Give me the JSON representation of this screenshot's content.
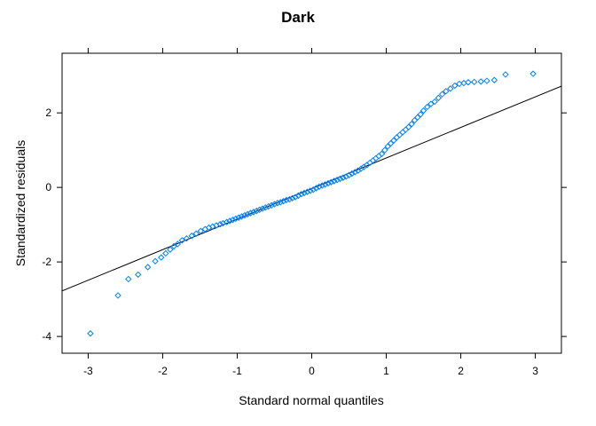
{
  "chart_data": {
    "type": "scatter",
    "subtype": "qq-plot",
    "title": "Dark",
    "xlabel": "Standard normal quantiles",
    "ylabel": "Standardized residuals",
    "xlim": [
      -3.35,
      3.35
    ],
    "ylim": [
      -4.45,
      3.6
    ],
    "xticks": [
      -3,
      -2,
      -1,
      0,
      1,
      2,
      3
    ],
    "yticks": [
      -4,
      -2,
      0,
      2
    ],
    "grid": false,
    "legend": "none",
    "reference_line": {
      "intercept": -0.03,
      "slope": 0.82
    },
    "point_color": "#0080ff",
    "line_color": "#000000",
    "series": [
      {
        "x": [
          -2.97,
          -2.6,
          -2.46,
          -2.33,
          -2.2,
          -2.1,
          -2.02,
          -1.96,
          -1.9,
          -1.85,
          -1.8,
          -1.74,
          -1.68,
          -1.61,
          -1.55,
          -1.49,
          -1.43,
          -1.38,
          -1.33,
          -1.28,
          -1.23,
          -1.19,
          -1.14,
          -1.1,
          -1.06,
          -1.02,
          -0.98,
          -0.94,
          -0.9,
          -0.86,
          -0.82,
          -0.78,
          -0.74,
          -0.7,
          -0.66,
          -0.62,
          -0.58,
          -0.54,
          -0.5,
          -0.46,
          -0.42,
          -0.38,
          -0.34,
          -0.3,
          -0.26,
          -0.22,
          -0.18,
          -0.14,
          -0.1,
          -0.06,
          -0.02,
          0.02,
          0.06,
          0.1,
          0.14,
          0.18,
          0.22,
          0.26,
          0.3,
          0.34,
          0.38,
          0.42,
          0.46,
          0.5,
          0.54,
          0.58,
          0.62,
          0.66,
          0.7,
          0.74,
          0.78,
          0.82,
          0.86,
          0.9,
          0.94,
          0.98,
          1.02,
          1.06,
          1.1,
          1.14,
          1.18,
          1.22,
          1.26,
          1.3,
          1.34,
          1.38,
          1.42,
          1.46,
          1.5,
          1.55,
          1.6,
          1.65,
          1.7,
          1.75,
          1.8,
          1.86,
          1.92,
          1.98,
          2.04,
          2.1,
          2.18,
          2.27,
          2.35,
          2.45,
          2.6,
          2.97
        ],
        "y": [
          -3.92,
          -2.9,
          -2.46,
          -2.34,
          -2.14,
          -1.98,
          -1.88,
          -1.77,
          -1.67,
          -1.58,
          -1.52,
          -1.42,
          -1.37,
          -1.3,
          -1.24,
          -1.17,
          -1.12,
          -1.08,
          -1.05,
          -1.02,
          -0.99,
          -0.96,
          -0.93,
          -0.9,
          -0.87,
          -0.84,
          -0.81,
          -0.78,
          -0.75,
          -0.72,
          -0.69,
          -0.66,
          -0.63,
          -0.6,
          -0.57,
          -0.54,
          -0.51,
          -0.48,
          -0.45,
          -0.42,
          -0.4,
          -0.37,
          -0.34,
          -0.32,
          -0.29,
          -0.26,
          -0.22,
          -0.18,
          -0.15,
          -0.12,
          -0.09,
          -0.06,
          -0.02,
          0.02,
          0.05,
          0.08,
          0.11,
          0.14,
          0.17,
          0.2,
          0.23,
          0.26,
          0.29,
          0.33,
          0.37,
          0.41,
          0.45,
          0.5,
          0.55,
          0.6,
          0.66,
          0.72,
          0.78,
          0.84,
          0.9,
          1.0,
          1.1,
          1.18,
          1.26,
          1.34,
          1.41,
          1.48,
          1.55,
          1.62,
          1.7,
          1.8,
          1.88,
          1.96,
          2.06,
          2.16,
          2.24,
          2.3,
          2.4,
          2.5,
          2.58,
          2.65,
          2.73,
          2.78,
          2.8,
          2.82,
          2.83,
          2.84,
          2.86,
          2.88,
          3.03,
          3.05
        ]
      }
    ]
  }
}
